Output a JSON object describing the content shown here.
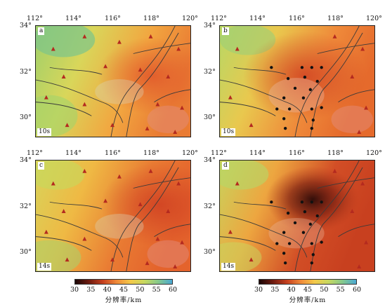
{
  "lon_labels": [
    "112°",
    "114°",
    "116°",
    "118°",
    "120°"
  ],
  "lat_labels": [
    "34°",
    "32°",
    "30°"
  ],
  "panels": [
    {
      "tag": "a",
      "period": "10s"
    },
    {
      "tag": "b",
      "period": "10s"
    },
    {
      "tag": "c",
      "period": "14s"
    },
    {
      "tag": "d",
      "period": "14s"
    }
  ],
  "colorbar": {
    "ticks": [
      "30",
      "35",
      "40",
      "45",
      "50",
      "55",
      "60"
    ],
    "title": "分辨率/km",
    "colors": [
      "#1a0606",
      "#6e1b10",
      "#c5401f",
      "#ef8a3a",
      "#f3c94a",
      "#c7d860",
      "#86c98c",
      "#4aa8d3"
    ]
  },
  "colors": {
    "station_marker": "#b42a1f",
    "dense_station_marker": "#111111",
    "fault_line": "#3a3a3a"
  }
}
